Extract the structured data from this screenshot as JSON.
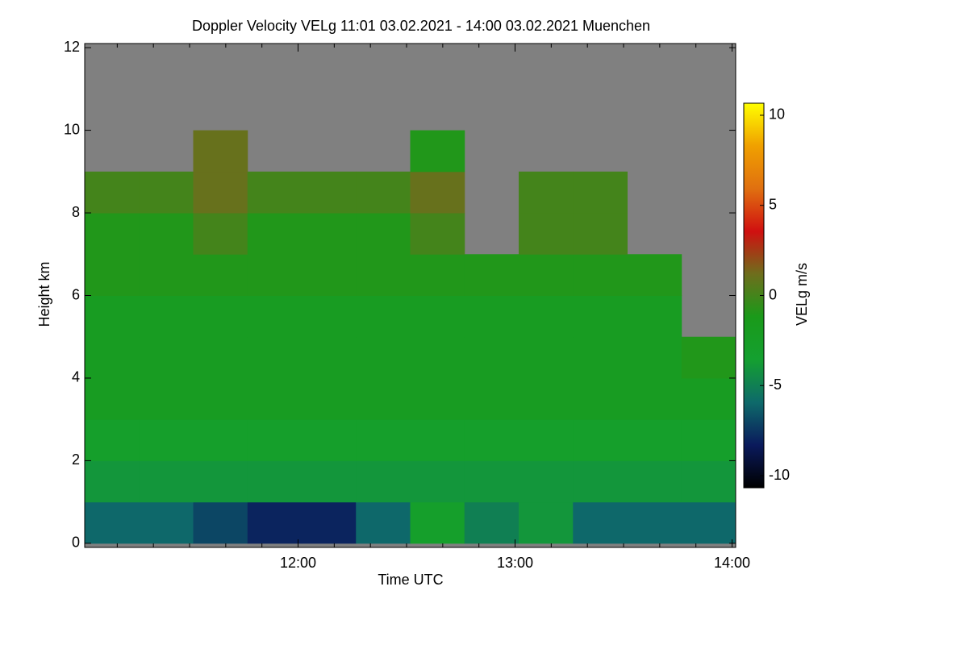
{
  "chart_data": {
    "type": "heatmap",
    "title": "Doppler Velocity VELg   11:01 03.02.2021 - 14:00 03.02.2021 Muenchen",
    "xlabel": "Time UTC",
    "ylabel": "Height km",
    "colorbar_label": "VELg m/s",
    "x_edges": [
      1,
      16,
      31,
      46,
      61,
      76,
      91,
      106,
      121,
      136,
      151,
      166,
      181
    ],
    "y_edges": [
      0,
      1,
      2,
      3,
      4,
      5,
      6,
      7,
      8,
      9,
      10,
      11,
      12
    ],
    "values": [
      [
        -6,
        -6,
        -7,
        -8,
        -8,
        -6,
        -3,
        -5,
        -4,
        -6,
        -6,
        -6
      ],
      [
        -4,
        -4,
        -4,
        -4,
        -4,
        -4,
        -4,
        -4,
        -4,
        -4,
        -4,
        -4
      ],
      [
        -3,
        -3,
        -3,
        -3,
        -3,
        -3,
        -3,
        -3,
        -3,
        -3,
        -3,
        -3
      ],
      [
        -2,
        -2,
        -2,
        -2,
        -2,
        -2,
        -2,
        -2,
        -2,
        -2,
        -2,
        -2
      ],
      [
        -2,
        -2,
        -2,
        -2,
        -2,
        -2,
        -2,
        -2,
        -2,
        -2,
        -2,
        -1
      ],
      [
        -2,
        -2,
        -2,
        -2,
        -2,
        -2,
        -2,
        -2,
        -2,
        -2,
        -2,
        null
      ],
      [
        -1,
        -1,
        -1,
        -1,
        -1,
        -1,
        -1,
        -1,
        -1,
        -1,
        -1,
        null
      ],
      [
        -1,
        -1,
        0,
        -1,
        -1,
        -1,
        0,
        null,
        0,
        0,
        null,
        null
      ],
      [
        0,
        0,
        1,
        0,
        0,
        0,
        1,
        null,
        0,
        0,
        null,
        null
      ],
      [
        null,
        null,
        1,
        null,
        null,
        null,
        -1,
        null,
        null,
        null,
        null,
        null
      ],
      [
        null,
        null,
        null,
        null,
        null,
        null,
        null,
        null,
        null,
        null,
        null,
        null
      ],
      [
        null,
        null,
        null,
        null,
        null,
        null,
        null,
        null,
        null,
        null,
        null,
        null
      ]
    ],
    "xlim": [
      1,
      181
    ],
    "ylim": [
      -0.1,
      12.1
    ],
    "xticks": [
      {
        "value": 60,
        "label": "12:00"
      },
      {
        "value": 120,
        "label": "13:00"
      },
      {
        "value": 180,
        "label": "14:00"
      }
    ],
    "xminorticks": [
      10,
      20,
      30,
      40,
      50,
      70,
      80,
      90,
      100,
      110,
      130,
      140,
      150,
      160,
      170
    ],
    "yticks": [
      0,
      2,
      4,
      6,
      8,
      10,
      12
    ],
    "zlim": [
      -10.67,
      10.67
    ],
    "zticks": [
      -10,
      -5,
      0,
      5,
      10
    ],
    "colorscale": [
      "#000000",
      "#0a1a5c",
      "#0e6a6a",
      "#14a030",
      "#1a9a1a",
      "#6e6e1c",
      "#d01010",
      "#e07010",
      "#f0a000",
      "#ffff00"
    ],
    "nodata_color": "#808080"
  }
}
